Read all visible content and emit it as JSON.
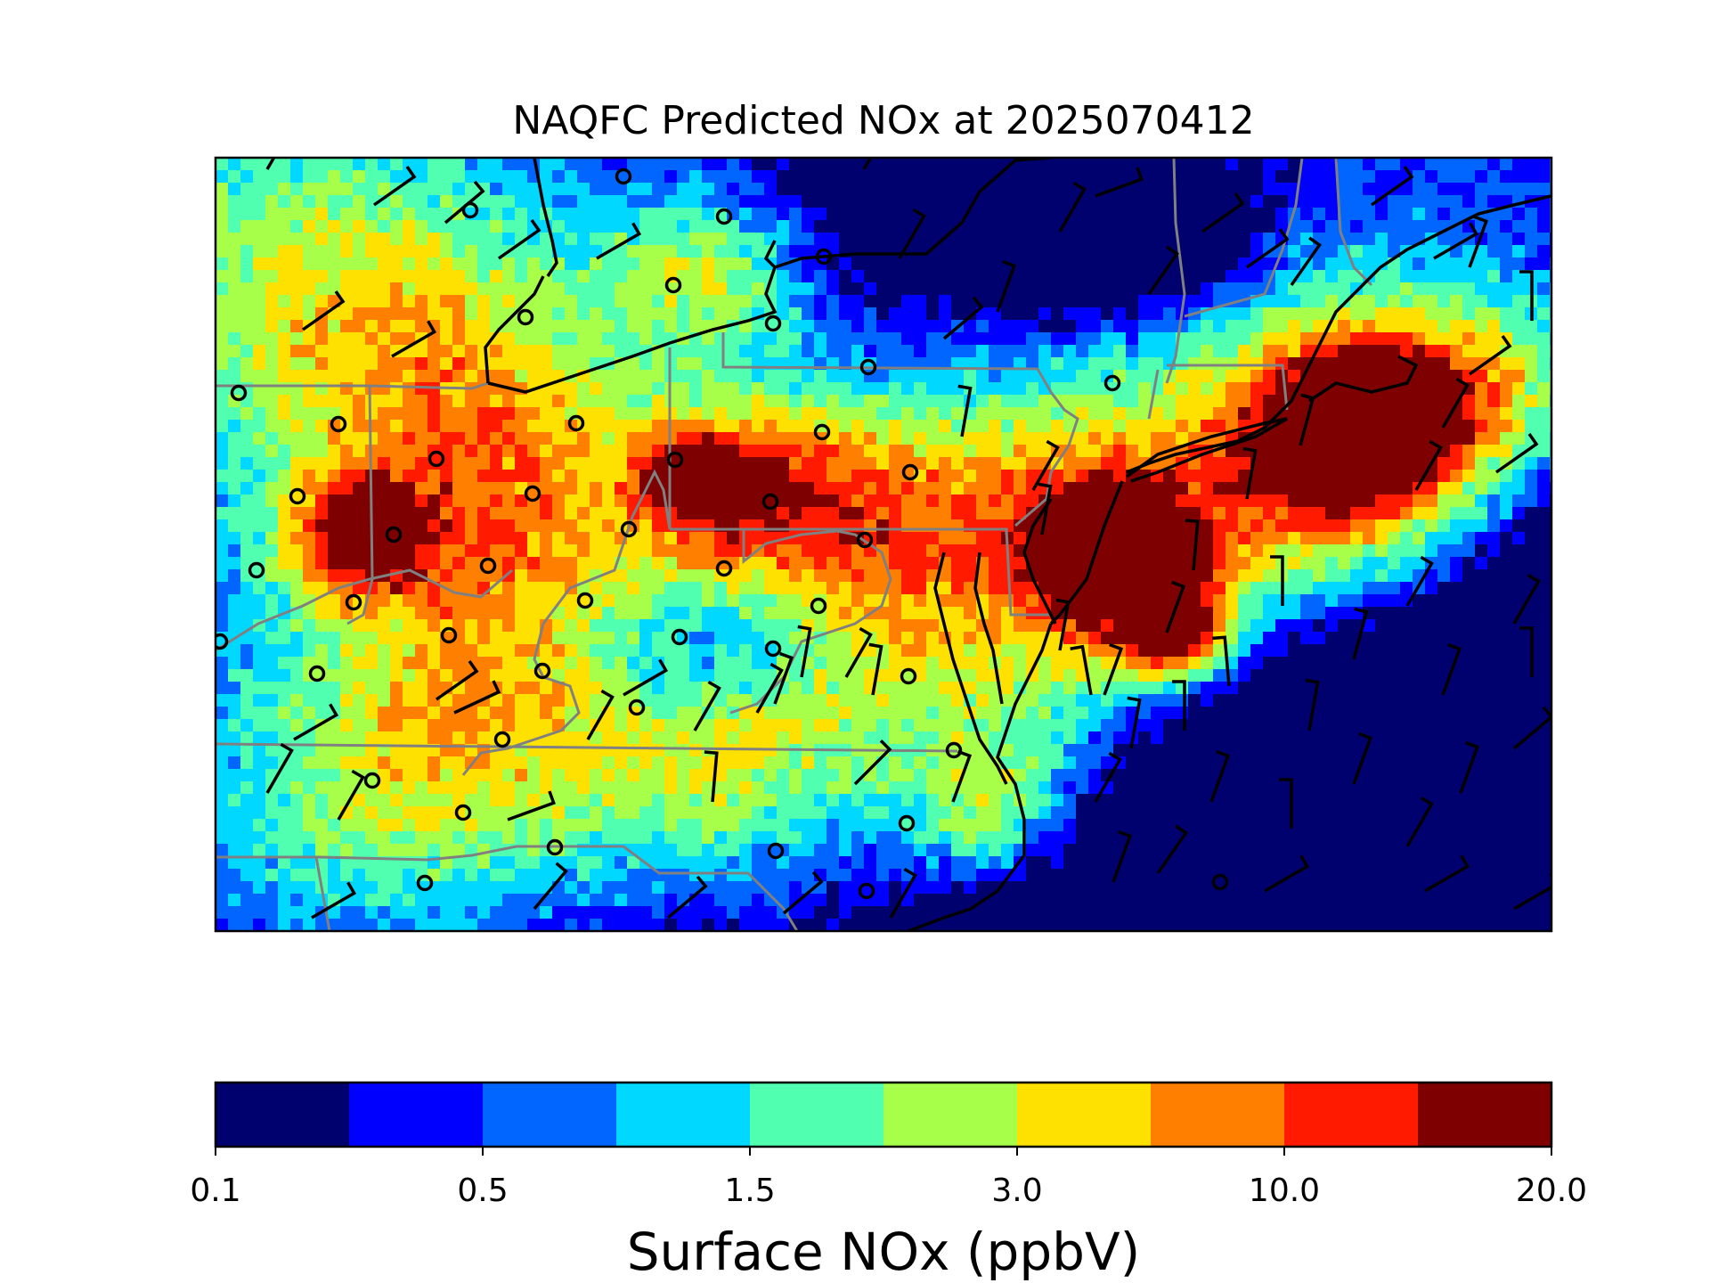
{
  "title": "NAQFC Predicted NOx at 2025070412",
  "colorbar": {
    "label": "Surface NOx (ppbV)",
    "tick_labels": [
      "0.1",
      "0.5",
      "1.5",
      "3.0",
      "10.0",
      "20.0"
    ],
    "colors": [
      "#00006e",
      "#0000ff",
      "#0066ff",
      "#00d8ff",
      "#50ffb0",
      "#a8ff4a",
      "#ffe100",
      "#ff7f00",
      "#ff1a00",
      "#7f0000"
    ]
  },
  "map": {
    "region": "Mid-Atlantic and Northeast United States",
    "colormap": "jet",
    "features": [
      "state boundaries",
      "coastlines",
      "wind barbs",
      "monitoring sites"
    ]
  }
}
